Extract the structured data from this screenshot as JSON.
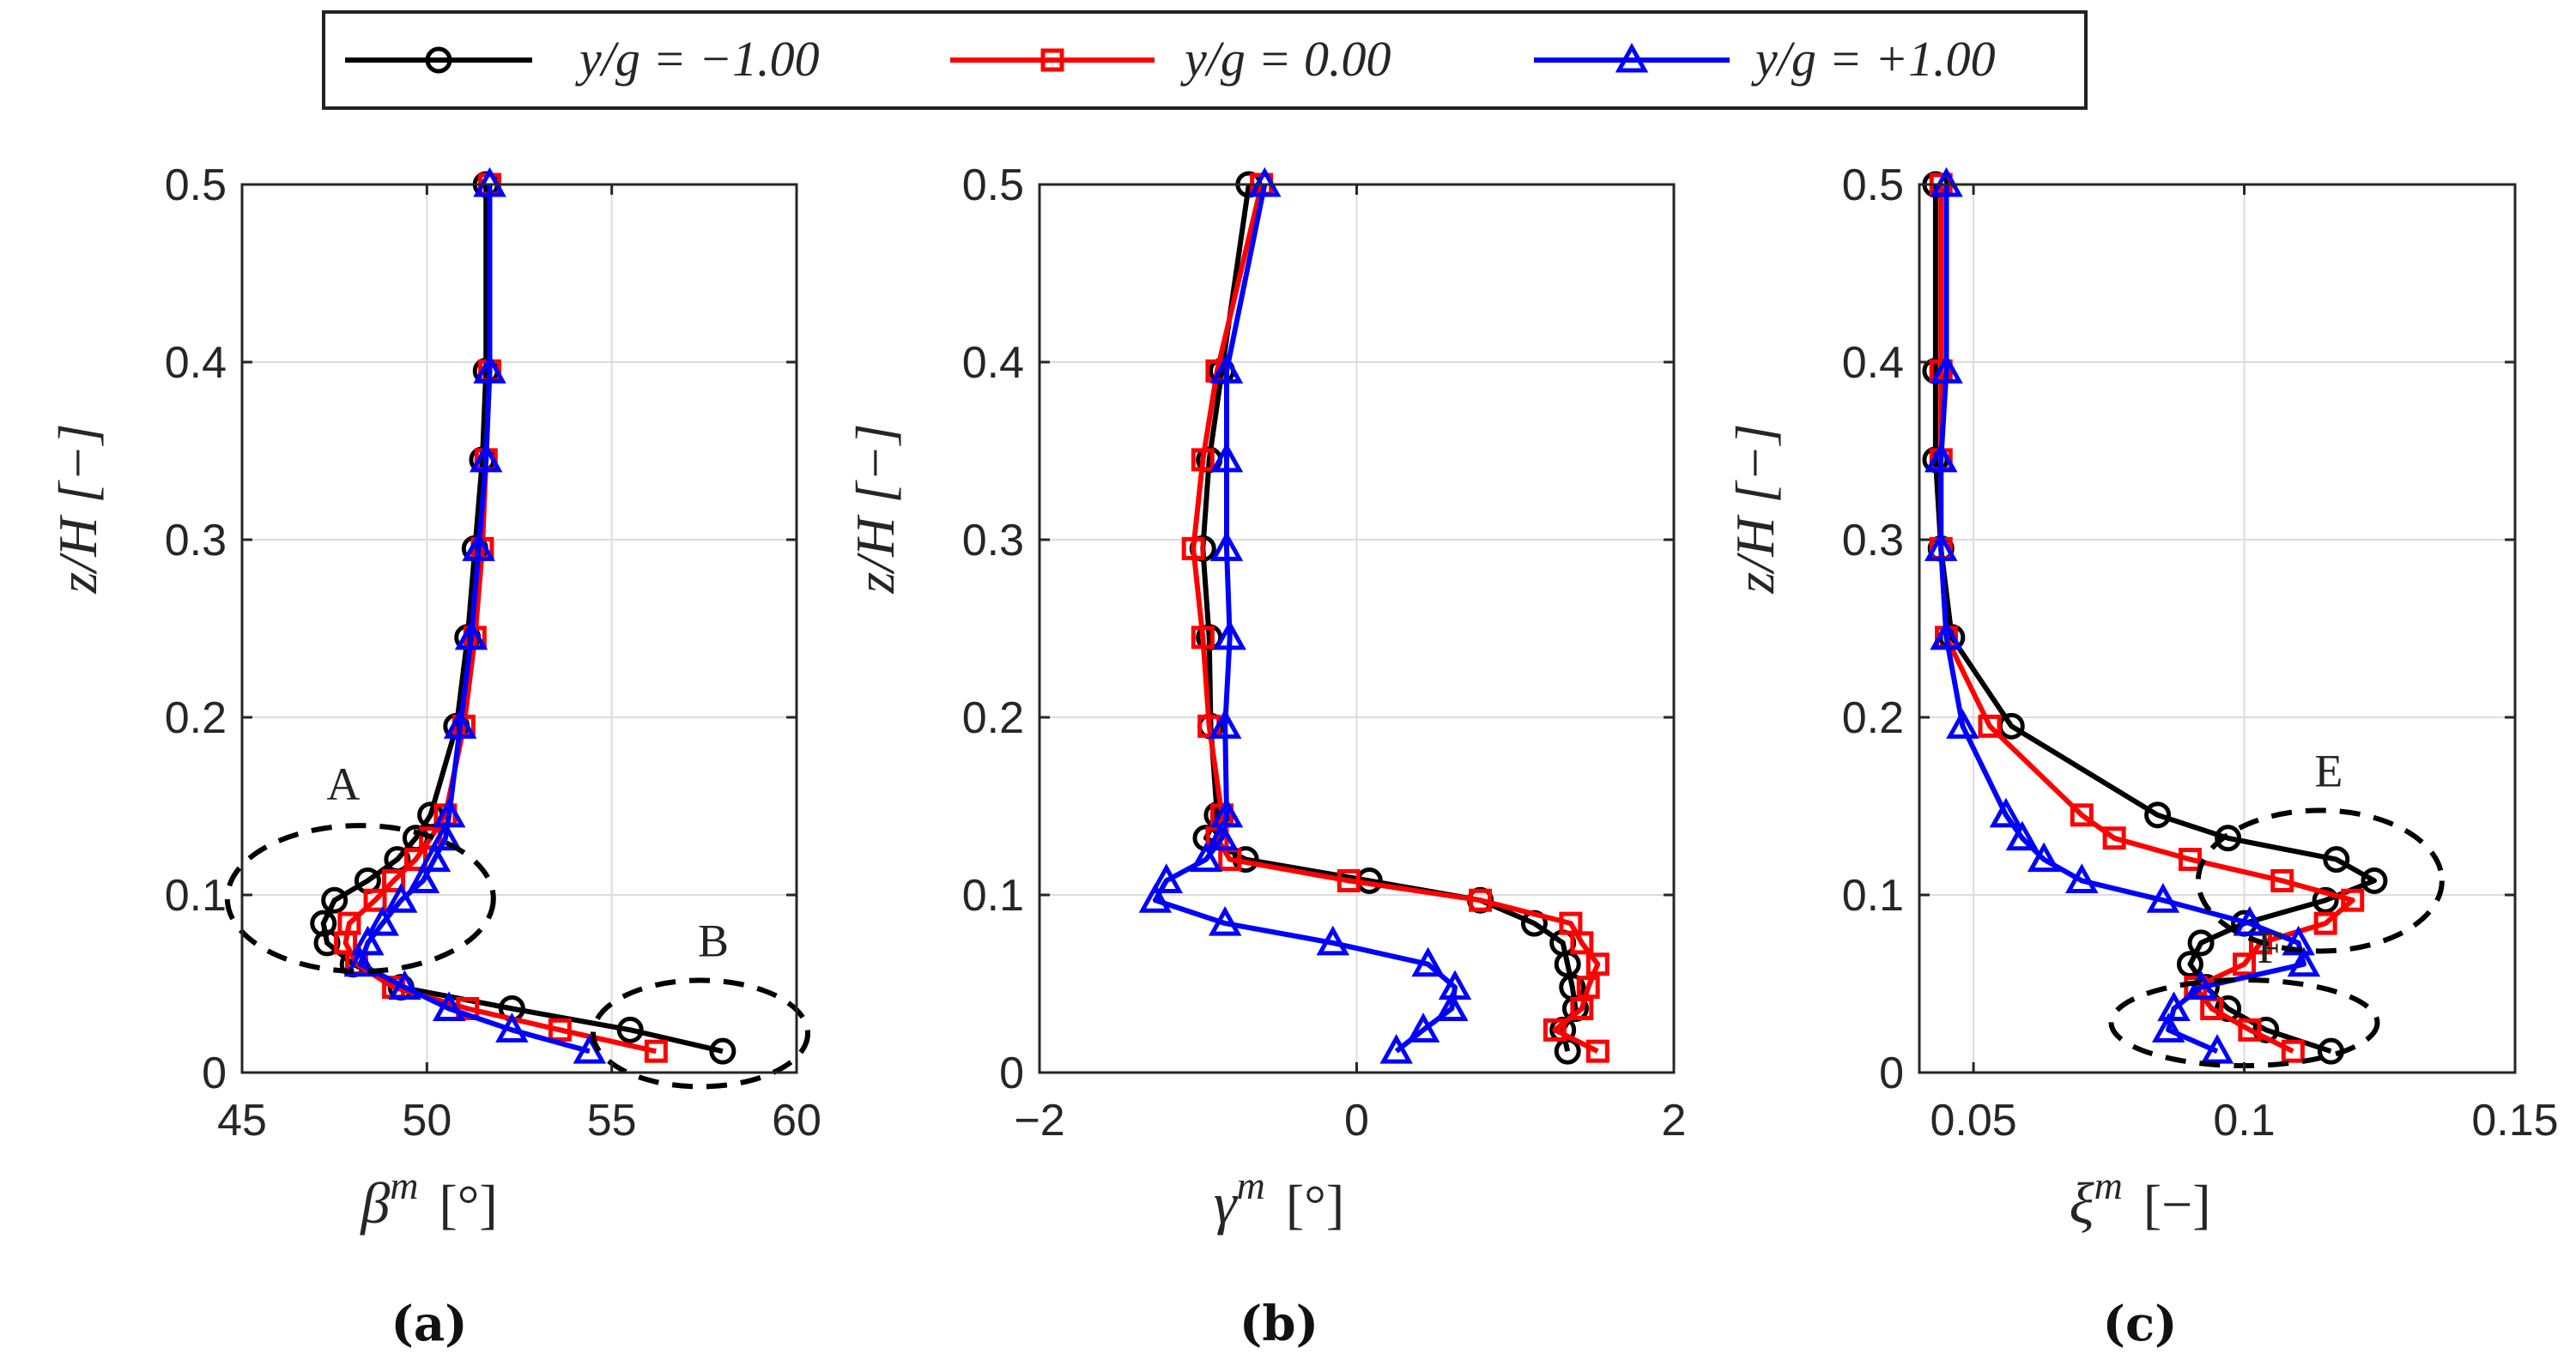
{
  "legend": {
    "entries": [
      {
        "label": "y/g = −1.00",
        "color": "#000000",
        "marker": "circle"
      },
      {
        "label": "y/g = 0.00",
        "color": "#ff0000",
        "marker": "square"
      },
      {
        "label": "y/g = +1.00",
        "color": "#0000ff",
        "marker": "triangle"
      }
    ]
  },
  "chart_data": [
    {
      "type": "line",
      "panel_label": "(a)",
      "xlabel_symbol": "β",
      "xlabel_superscript": "m",
      "xlabel_unit": "[°]",
      "ylabel": "z/H  [−]",
      "xlim": [
        45,
        60
      ],
      "ylim": [
        0,
        0.5
      ],
      "xticks": [
        45,
        50,
        55,
        60
      ],
      "yticks": [
        0,
        0.1,
        0.2,
        0.3,
        0.4,
        0.5
      ],
      "xtick_labels": [
        "45",
        "50",
        "55",
        "60"
      ],
      "ytick_labels": [
        "0",
        "0.1",
        "0.2",
        "0.3",
        "0.4",
        "0.5"
      ],
      "grid": true,
      "series": [
        {
          "name": "y/g = −1.00",
          "z": [
            0.5,
            0.395,
            0.345,
            0.295,
            0.245,
            0.195,
            0.145,
            0.132,
            0.12,
            0.108,
            0.097,
            0.084,
            0.073,
            0.061,
            0.048,
            0.036,
            0.024,
            0.012
          ],
          "x": [
            51.6,
            51.6,
            51.5,
            51.3,
            51.1,
            50.8,
            50.1,
            49.7,
            49.2,
            48.4,
            47.5,
            47.2,
            47.3,
            48.0,
            49.3,
            52.3,
            55.5,
            58.0
          ]
        },
        {
          "name": "y/g = 0.00",
          "z": [
            0.5,
            0.395,
            0.345,
            0.295,
            0.245,
            0.195,
            0.145,
            0.132,
            0.12,
            0.108,
            0.097,
            0.084,
            0.073,
            0.061,
            0.048,
            0.036,
            0.024,
            0.012
          ],
          "x": [
            51.7,
            51.7,
            51.6,
            51.5,
            51.3,
            51.0,
            50.5,
            50.1,
            49.7,
            49.1,
            48.6,
            47.9,
            47.8,
            48.1,
            49.1,
            51.1,
            53.6,
            56.2
          ]
        },
        {
          "name": "y/g = +1.00",
          "z": [
            0.5,
            0.395,
            0.345,
            0.295,
            0.245,
            0.195,
            0.145,
            0.132,
            0.12,
            0.108,
            0.097,
            0.084,
            0.073,
            0.061,
            0.048,
            0.036,
            0.024,
            0.012
          ],
          "x": [
            51.7,
            51.7,
            51.6,
            51.4,
            51.2,
            50.9,
            50.6,
            50.5,
            50.2,
            49.9,
            49.3,
            48.8,
            48.4,
            48.2,
            49.4,
            50.6,
            52.3,
            54.4
          ]
        }
      ],
      "annotations": [
        {
          "text": "A",
          "cx": 48.2,
          "cy": 0.098
        },
        {
          "text": "B",
          "cx": 57.4,
          "cy": 0.022
        }
      ]
    },
    {
      "type": "line",
      "panel_label": "(b)",
      "xlabel_symbol": "γ",
      "xlabel_superscript": "m",
      "xlabel_unit": "[°]",
      "ylabel": "z/H  [−]",
      "xlim": [
        -2,
        2
      ],
      "ylim": [
        0,
        0.5
      ],
      "xticks": [
        -2,
        0,
        2
      ],
      "yticks": [
        0,
        0.1,
        0.2,
        0.3,
        0.4,
        0.5
      ],
      "xtick_labels": [
        "−2",
        "0",
        "2"
      ],
      "ytick_labels": [
        "0",
        "0.1",
        "0.2",
        "0.3",
        "0.4",
        "0.5"
      ],
      "grid": true,
      "series": [
        {
          "name": "y/g = −1.00",
          "z": [
            0.5,
            0.395,
            0.345,
            0.295,
            0.245,
            0.195,
            0.145,
            0.132,
            0.12,
            0.108,
            0.097,
            0.084,
            0.073,
            0.061,
            0.048,
            0.036,
            0.024,
            0.012
          ],
          "x": [
            -0.68,
            -0.85,
            -0.93,
            -0.97,
            -0.93,
            -0.92,
            -0.88,
            -0.95,
            -0.7,
            0.08,
            0.78,
            1.12,
            1.3,
            1.33,
            1.36,
            1.38,
            1.3,
            1.33
          ]
        },
        {
          "name": "y/g = 0.00",
          "z": [
            0.5,
            0.395,
            0.345,
            0.295,
            0.245,
            0.195,
            0.145,
            0.132,
            0.12,
            0.108,
            0.097,
            0.084,
            0.073,
            0.061,
            0.048,
            0.036,
            0.024,
            0.012
          ],
          "x": [
            -0.6,
            -0.88,
            -0.97,
            -1.03,
            -0.97,
            -0.93,
            -0.85,
            -0.88,
            -0.8,
            -0.05,
            0.78,
            1.35,
            1.42,
            1.52,
            1.46,
            1.42,
            1.25,
            1.52
          ]
        },
        {
          "name": "y/g = +1.00",
          "z": [
            0.5,
            0.395,
            0.345,
            0.295,
            0.245,
            0.195,
            0.145,
            0.132,
            0.12,
            0.108,
            0.097,
            0.084,
            0.073,
            0.061,
            0.048,
            0.036,
            0.024,
            0.012
          ],
          "x": [
            -0.58,
            -0.82,
            -0.82,
            -0.82,
            -0.8,
            -0.83,
            -0.82,
            -0.85,
            -0.95,
            -1.2,
            -1.27,
            -0.83,
            -0.15,
            0.45,
            0.62,
            0.6,
            0.42,
            0.25
          ]
        }
      ],
      "annotations": []
    },
    {
      "type": "line",
      "panel_label": "(c)",
      "xlabel_symbol": "ξ",
      "xlabel_superscript": "m",
      "xlabel_unit": "[−]",
      "ylabel": "z/H  [−]",
      "xlim": [
        0.04,
        0.15
      ],
      "ylim": [
        0,
        0.5
      ],
      "xticks": [
        0.05,
        0.1,
        0.15
      ],
      "yticks": [
        0,
        0.1,
        0.2,
        0.3,
        0.4,
        0.5
      ],
      "xtick_labels": [
        "0.05",
        "0.1",
        "0.15"
      ],
      "ytick_labels": [
        "0",
        "0.1",
        "0.2",
        "0.3",
        "0.4",
        "0.5"
      ],
      "grid": true,
      "series": [
        {
          "name": "y/g = −1.00",
          "z": [
            0.5,
            0.395,
            0.345,
            0.295,
            0.245,
            0.195,
            0.145,
            0.132,
            0.12,
            0.108,
            0.097,
            0.084,
            0.073,
            0.061,
            0.048,
            0.036,
            0.024,
            0.012
          ],
          "x": [
            0.043,
            0.043,
            0.043,
            0.044,
            0.046,
            0.057,
            0.084,
            0.097,
            0.117,
            0.124,
            0.115,
            0.1,
            0.092,
            0.09,
            0.093,
            0.097,
            0.104,
            0.116
          ]
        },
        {
          "name": "y/g = 0.00",
          "z": [
            0.5,
            0.395,
            0.345,
            0.295,
            0.245,
            0.195,
            0.145,
            0.132,
            0.12,
            0.108,
            0.097,
            0.084,
            0.073,
            0.061,
            0.048,
            0.036,
            0.024,
            0.012
          ],
          "x": [
            0.044,
            0.044,
            0.044,
            0.044,
            0.045,
            0.053,
            0.07,
            0.076,
            0.09,
            0.107,
            0.12,
            0.115,
            0.103,
            0.1,
            0.091,
            0.094,
            0.101,
            0.109
          ]
        },
        {
          "name": "y/g = +1.00",
          "z": [
            0.5,
            0.395,
            0.345,
            0.295,
            0.245,
            0.195,
            0.145,
            0.132,
            0.12,
            0.108,
            0.097,
            0.084,
            0.073,
            0.061,
            0.048,
            0.036,
            0.024,
            0.012
          ],
          "x": [
            0.045,
            0.045,
            0.044,
            0.044,
            0.045,
            0.048,
            0.056,
            0.059,
            0.063,
            0.07,
            0.085,
            0.101,
            0.11,
            0.111,
            0.092,
            0.087,
            0.086,
            0.095
          ]
        }
      ],
      "annotations": [
        {
          "text": "E",
          "cx": 0.114,
          "cy": 0.108
        },
        {
          "text": "F",
          "cx": 0.1,
          "cy": 0.028
        }
      ]
    }
  ]
}
